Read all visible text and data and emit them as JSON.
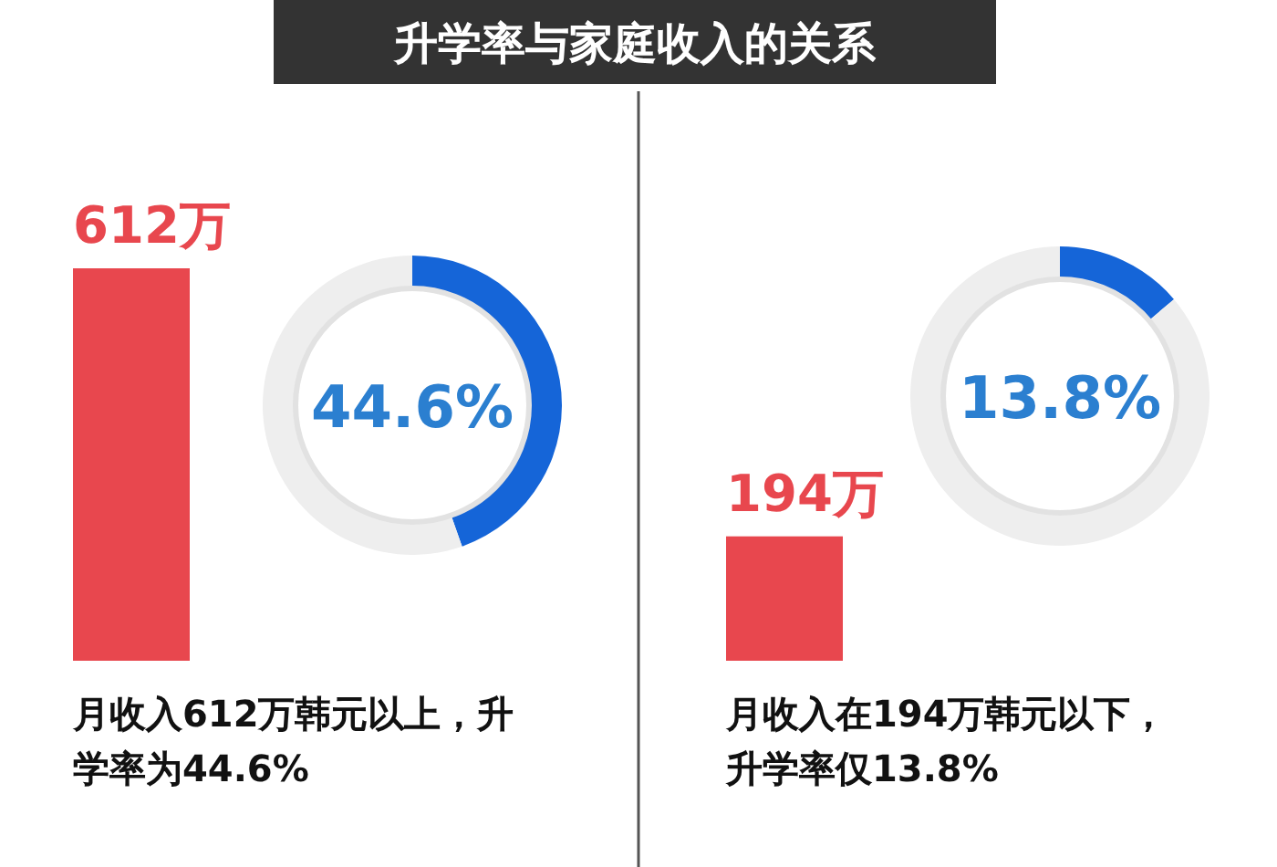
{
  "chart_data": [
    {
      "type": "bar",
      "title": "升学率与家庭收入的关系",
      "categories": [
        null,
        null
      ],
      "values": [
        612,
        194
      ],
      "color": "#e8474e",
      "value_labels": [
        "612万",
        "194万"
      ],
      "annotations": [
        "月收入612万韩元以上，升学率为44.6%",
        "月收入在194万韩元以下，升学率仅13.8%"
      ]
    },
    {
      "type": "donut",
      "categories": [
        null,
        null
      ],
      "values": [
        44.6,
        55.4
      ],
      "colors": [
        "#1565d8",
        "#eeeeee"
      ],
      "annotations": [
        "44.6%"
      ]
    },
    {
      "type": "donut",
      "categories": [
        null,
        null
      ],
      "values": [
        13.8,
        86.2
      ],
      "colors": [
        "#1565d8",
        "#eeeeee"
      ],
      "annotations": [
        "13.8%"
      ]
    }
  ]
}
